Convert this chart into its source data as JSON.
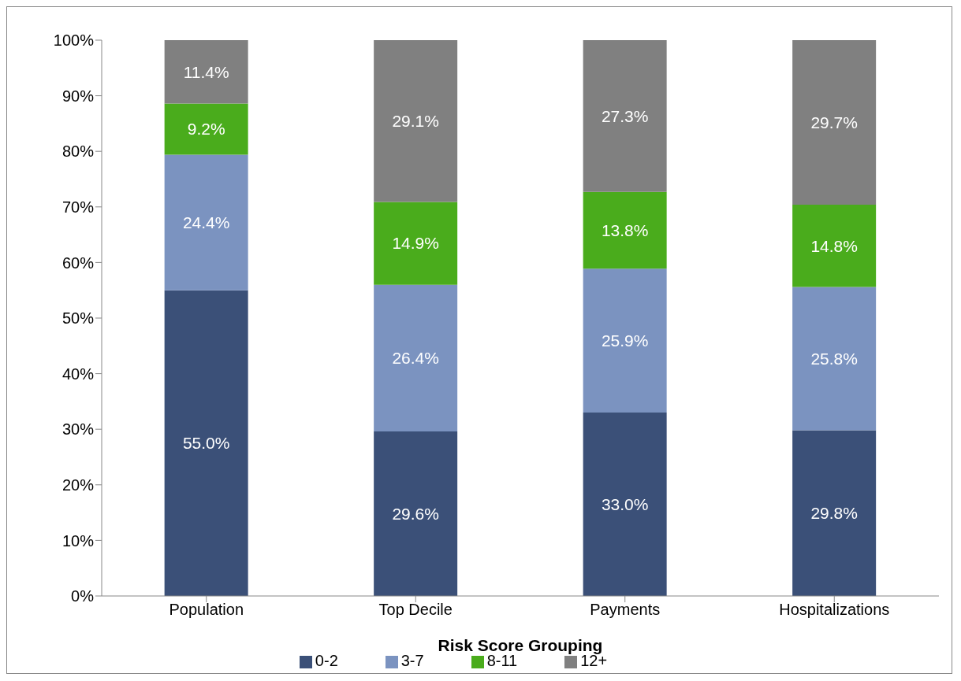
{
  "chart_data": {
    "type": "bar",
    "stacked": true,
    "xlabel": "Risk Score Grouping",
    "categories": [
      "Population",
      "Top Decile",
      "Payments",
      "Hospitalizations"
    ],
    "series": [
      {
        "name": "0-2",
        "color": "#3b5078",
        "values": [
          55.0,
          29.6,
          33.0,
          29.8
        ],
        "value_labels": [
          "55.0%",
          "29.6%",
          "33.0%",
          "29.8%"
        ]
      },
      {
        "name": "3-7",
        "color": "#7b93c0",
        "values": [
          24.4,
          26.4,
          25.9,
          25.8
        ],
        "value_labels": [
          "24.4%",
          "26.4%",
          "25.9%",
          "25.8%"
        ]
      },
      {
        "name": "8-11",
        "color": "#4aac1c",
        "values": [
          9.2,
          14.9,
          13.8,
          14.8
        ],
        "value_labels": [
          "9.2%",
          "14.9%",
          "13.8%",
          "14.8%"
        ]
      },
      {
        "name": "12+",
        "color": "#808080",
        "values": [
          11.4,
          29.1,
          27.3,
          29.7
        ],
        "value_labels": [
          "11.4%",
          "29.1%",
          "27.3%",
          "29.7%"
        ]
      }
    ],
    "ylim": [
      0,
      100
    ],
    "yticks": [
      {
        "value": 0,
        "label": "0%"
      },
      {
        "value": 10,
        "label": "10%"
      },
      {
        "value": 20,
        "label": "20%"
      },
      {
        "value": 30,
        "label": "30%"
      },
      {
        "value": 40,
        "label": "40%"
      },
      {
        "value": 50,
        "label": "50%"
      },
      {
        "value": 60,
        "label": "60%"
      },
      {
        "value": 70,
        "label": "70%"
      },
      {
        "value": 80,
        "label": "80%"
      },
      {
        "value": 90,
        "label": "90%"
      },
      {
        "value": 100,
        "label": "100%"
      }
    ],
    "grid": false,
    "legend": "bottom"
  }
}
